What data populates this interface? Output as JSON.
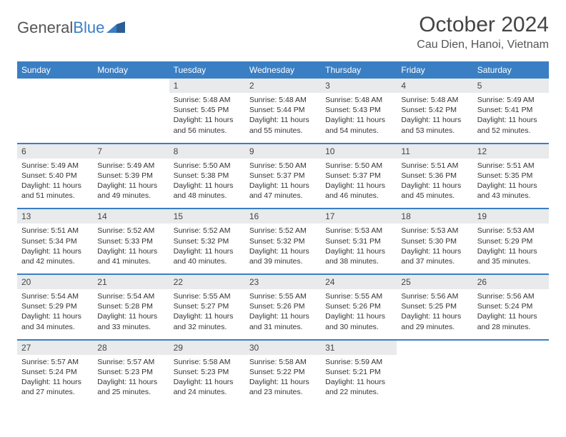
{
  "logo": {
    "text1": "General",
    "text2": "Blue"
  },
  "title": "October 2024",
  "location": "Cau Dien, Hanoi, Vietnam",
  "colors": {
    "header_bg": "#3a7fc4",
    "daynum_bg": "#e8eaec",
    "text": "#333333"
  },
  "dayNames": [
    "Sunday",
    "Monday",
    "Tuesday",
    "Wednesday",
    "Thursday",
    "Friday",
    "Saturday"
  ],
  "weeks": [
    [
      null,
      null,
      {
        "n": "1",
        "sr": "5:48 AM",
        "ss": "5:45 PM",
        "dl": "11 hours and 56 minutes."
      },
      {
        "n": "2",
        "sr": "5:48 AM",
        "ss": "5:44 PM",
        "dl": "11 hours and 55 minutes."
      },
      {
        "n": "3",
        "sr": "5:48 AM",
        "ss": "5:43 PM",
        "dl": "11 hours and 54 minutes."
      },
      {
        "n": "4",
        "sr": "5:48 AM",
        "ss": "5:42 PM",
        "dl": "11 hours and 53 minutes."
      },
      {
        "n": "5",
        "sr": "5:49 AM",
        "ss": "5:41 PM",
        "dl": "11 hours and 52 minutes."
      }
    ],
    [
      {
        "n": "6",
        "sr": "5:49 AM",
        "ss": "5:40 PM",
        "dl": "11 hours and 51 minutes."
      },
      {
        "n": "7",
        "sr": "5:49 AM",
        "ss": "5:39 PM",
        "dl": "11 hours and 49 minutes."
      },
      {
        "n": "8",
        "sr": "5:50 AM",
        "ss": "5:38 PM",
        "dl": "11 hours and 48 minutes."
      },
      {
        "n": "9",
        "sr": "5:50 AM",
        "ss": "5:37 PM",
        "dl": "11 hours and 47 minutes."
      },
      {
        "n": "10",
        "sr": "5:50 AM",
        "ss": "5:37 PM",
        "dl": "11 hours and 46 minutes."
      },
      {
        "n": "11",
        "sr": "5:51 AM",
        "ss": "5:36 PM",
        "dl": "11 hours and 45 minutes."
      },
      {
        "n": "12",
        "sr": "5:51 AM",
        "ss": "5:35 PM",
        "dl": "11 hours and 43 minutes."
      }
    ],
    [
      {
        "n": "13",
        "sr": "5:51 AM",
        "ss": "5:34 PM",
        "dl": "11 hours and 42 minutes."
      },
      {
        "n": "14",
        "sr": "5:52 AM",
        "ss": "5:33 PM",
        "dl": "11 hours and 41 minutes."
      },
      {
        "n": "15",
        "sr": "5:52 AM",
        "ss": "5:32 PM",
        "dl": "11 hours and 40 minutes."
      },
      {
        "n": "16",
        "sr": "5:52 AM",
        "ss": "5:32 PM",
        "dl": "11 hours and 39 minutes."
      },
      {
        "n": "17",
        "sr": "5:53 AM",
        "ss": "5:31 PM",
        "dl": "11 hours and 38 minutes."
      },
      {
        "n": "18",
        "sr": "5:53 AM",
        "ss": "5:30 PM",
        "dl": "11 hours and 37 minutes."
      },
      {
        "n": "19",
        "sr": "5:53 AM",
        "ss": "5:29 PM",
        "dl": "11 hours and 35 minutes."
      }
    ],
    [
      {
        "n": "20",
        "sr": "5:54 AM",
        "ss": "5:29 PM",
        "dl": "11 hours and 34 minutes."
      },
      {
        "n": "21",
        "sr": "5:54 AM",
        "ss": "5:28 PM",
        "dl": "11 hours and 33 minutes."
      },
      {
        "n": "22",
        "sr": "5:55 AM",
        "ss": "5:27 PM",
        "dl": "11 hours and 32 minutes."
      },
      {
        "n": "23",
        "sr": "5:55 AM",
        "ss": "5:26 PM",
        "dl": "11 hours and 31 minutes."
      },
      {
        "n": "24",
        "sr": "5:55 AM",
        "ss": "5:26 PM",
        "dl": "11 hours and 30 minutes."
      },
      {
        "n": "25",
        "sr": "5:56 AM",
        "ss": "5:25 PM",
        "dl": "11 hours and 29 minutes."
      },
      {
        "n": "26",
        "sr": "5:56 AM",
        "ss": "5:24 PM",
        "dl": "11 hours and 28 minutes."
      }
    ],
    [
      {
        "n": "27",
        "sr": "5:57 AM",
        "ss": "5:24 PM",
        "dl": "11 hours and 27 minutes."
      },
      {
        "n": "28",
        "sr": "5:57 AM",
        "ss": "5:23 PM",
        "dl": "11 hours and 25 minutes."
      },
      {
        "n": "29",
        "sr": "5:58 AM",
        "ss": "5:23 PM",
        "dl": "11 hours and 24 minutes."
      },
      {
        "n": "30",
        "sr": "5:58 AM",
        "ss": "5:22 PM",
        "dl": "11 hours and 23 minutes."
      },
      {
        "n": "31",
        "sr": "5:59 AM",
        "ss": "5:21 PM",
        "dl": "11 hours and 22 minutes."
      },
      null,
      null
    ]
  ],
  "labels": {
    "sunrise": "Sunrise: ",
    "sunset": "Sunset: ",
    "daylight": "Daylight: "
  }
}
